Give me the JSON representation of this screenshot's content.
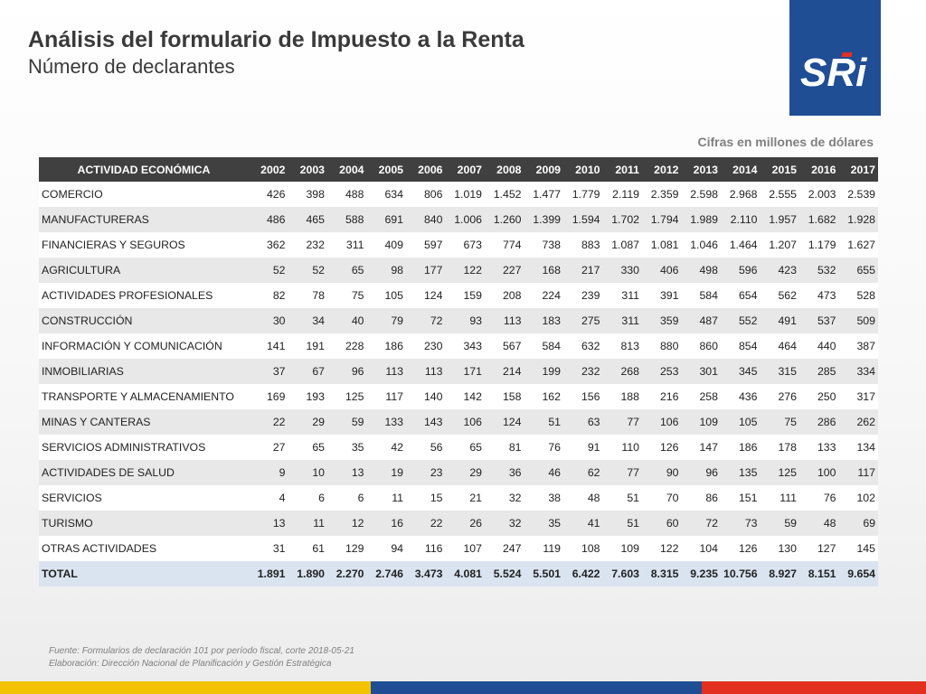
{
  "header": {
    "title": "Análisis del formulario de Impuesto a la Renta",
    "subtitle": "Número de declarantes",
    "logo_text": "SRi"
  },
  "note": "Cifras en millones de dólares",
  "table": {
    "columns": [
      "ACTIVIDAD ECONÓMICA",
      "2002",
      "2003",
      "2004",
      "2005",
      "2006",
      "2007",
      "2008",
      "2009",
      "2010",
      "2011",
      "2012",
      "2013",
      "2014",
      "2015",
      "2016",
      "2017"
    ],
    "rows": [
      {
        "cells": [
          "COMERCIO",
          "426",
          "398",
          "488",
          "634",
          "806",
          "1.019",
          "1.452",
          "1.477",
          "1.779",
          "2.119",
          "2.359",
          "2.598",
          "2.968",
          "2.555",
          "2.003",
          "2.539"
        ]
      },
      {
        "cells": [
          "MANUFACTURERAS",
          "486",
          "465",
          "588",
          "691",
          "840",
          "1.006",
          "1.260",
          "1.399",
          "1.594",
          "1.702",
          "1.794",
          "1.989",
          "2.110",
          "1.957",
          "1.682",
          "1.928"
        ]
      },
      {
        "cells": [
          "FINANCIERAS Y SEGUROS",
          "362",
          "232",
          "311",
          "409",
          "597",
          "673",
          "774",
          "738",
          "883",
          "1.087",
          "1.081",
          "1.046",
          "1.464",
          "1.207",
          "1.179",
          "1.627"
        ]
      },
      {
        "cells": [
          "AGRICULTURA",
          "52",
          "52",
          "65",
          "98",
          "177",
          "122",
          "227",
          "168",
          "217",
          "330",
          "406",
          "498",
          "596",
          "423",
          "532",
          "655"
        ]
      },
      {
        "cells": [
          "ACTIVIDADES PROFESIONALES",
          "82",
          "78",
          "75",
          "105",
          "124",
          "159",
          "208",
          "224",
          "239",
          "311",
          "391",
          "584",
          "654",
          "562",
          "473",
          "528"
        ]
      },
      {
        "cells": [
          "CONSTRUCCIÓN",
          "30",
          "34",
          "40",
          "79",
          "72",
          "93",
          "113",
          "183",
          "275",
          "311",
          "359",
          "487",
          "552",
          "491",
          "537",
          "509"
        ]
      },
      {
        "cells": [
          "INFORMACIÓN Y COMUNICACIÓN",
          "141",
          "191",
          "228",
          "186",
          "230",
          "343",
          "567",
          "584",
          "632",
          "813",
          "880",
          "860",
          "854",
          "464",
          "440",
          "387"
        ]
      },
      {
        "cells": [
          "INMOBILIARIAS",
          "37",
          "67",
          "96",
          "113",
          "113",
          "171",
          "214",
          "199",
          "232",
          "268",
          "253",
          "301",
          "345",
          "315",
          "285",
          "334"
        ]
      },
      {
        "cells": [
          "TRANSPORTE Y ALMACENAMIENTO",
          "169",
          "193",
          "125",
          "117",
          "140",
          "142",
          "158",
          "162",
          "156",
          "188",
          "216",
          "258",
          "436",
          "276",
          "250",
          "317"
        ]
      },
      {
        "cells": [
          "MINAS Y CANTERAS",
          "22",
          "29",
          "59",
          "133",
          "143",
          "106",
          "124",
          "51",
          "63",
          "77",
          "106",
          "109",
          "105",
          "75",
          "286",
          "262"
        ]
      },
      {
        "cells": [
          "SERVICIOS ADMINISTRATIVOS",
          "27",
          "65",
          "35",
          "42",
          "56",
          "65",
          "81",
          "76",
          "91",
          "110",
          "126",
          "147",
          "186",
          "178",
          "133",
          "134"
        ]
      },
      {
        "cells": [
          "ACTIVIDADES DE SALUD",
          "9",
          "10",
          "13",
          "19",
          "23",
          "29",
          "36",
          "46",
          "62",
          "77",
          "90",
          "96",
          "135",
          "125",
          "100",
          "117"
        ]
      },
      {
        "cells": [
          "SERVICIOS",
          "4",
          "6",
          "6",
          "11",
          "15",
          "21",
          "32",
          "38",
          "48",
          "51",
          "70",
          "86",
          "151",
          "111",
          "76",
          "102"
        ]
      },
      {
        "cells": [
          "TURISMO",
          "13",
          "11",
          "12",
          "16",
          "22",
          "26",
          "32",
          "35",
          "41",
          "51",
          "60",
          "72",
          "73",
          "59",
          "48",
          "69"
        ]
      },
      {
        "cells": [
          "OTRAS ACTIVIDADES",
          "31",
          "61",
          "129",
          "94",
          "116",
          "107",
          "247",
          "119",
          "108",
          "109",
          "122",
          "104",
          "126",
          "130",
          "127",
          "145"
        ]
      }
    ],
    "total": {
      "cells": [
        "TOTAL",
        "1.891",
        "1.890",
        "2.270",
        "2.746",
        "3.473",
        "4.081",
        "5.524",
        "5.501",
        "6.422",
        "7.603",
        "8.315",
        "9.235",
        "10.756",
        "8.927",
        "8.151",
        "9.654"
      ]
    }
  },
  "source": {
    "line1": "Fuente: Formularios de declaración 101 por período fiscal, corte 2018-05-21",
    "line2": "Elaboración: Dirección Nacional de Planificación y Gestión Estratégica"
  },
  "colors": {
    "header_bg": "#404040",
    "total_bg": "#dae4f0",
    "logo_blue": "#1f4e95",
    "logo_red": "#e22f1f",
    "bar_yellow": "#f3c200",
    "bar_blue": "#1f4e95",
    "bar_red": "#e22f1f"
  }
}
